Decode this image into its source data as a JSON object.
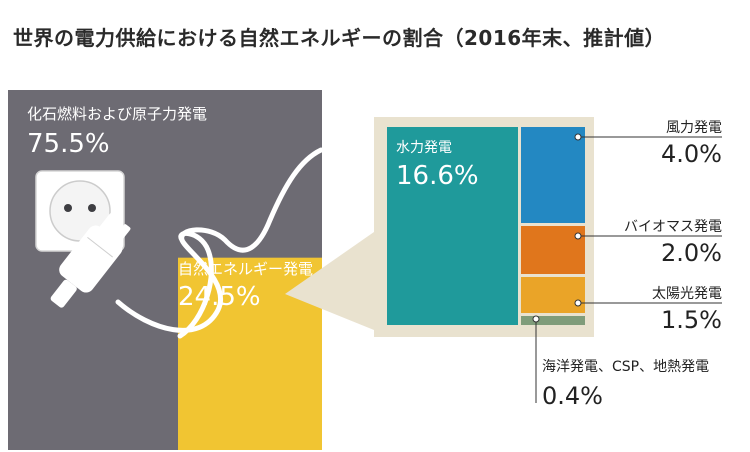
{
  "title": "世界の電力供給における自然エネルギーの割合（2016年末、推計値）",
  "colors": {
    "fossil": "#6d6b73",
    "renewable": "#f1c532",
    "panel_bg": "#e9e2cf",
    "hydro": "#1f9a9b",
    "wind": "#2388c2",
    "bio": "#e0761c",
    "solar": "#eaa428",
    "other": "#7f9c7a"
  },
  "icons": {
    "plug": "power-plug-icon",
    "outlet": "wall-outlet-icon"
  },
  "chart_data": {
    "type": "treemap",
    "total": {
      "categories": [
        "化石燃料および原子力発電",
        "自然エネルギー発電"
      ],
      "values": [
        75.5,
        24.5
      ],
      "labels": [
        "75.5%",
        "24.5%"
      ]
    },
    "renewable_breakdown": {
      "categories": [
        "水力発電",
        "風力発電",
        "バイオマス発電",
        "太陽光発電",
        "海洋発電、CSP、地熱発電"
      ],
      "values": [
        16.6,
        4.0,
        2.0,
        1.5,
        0.4
      ],
      "labels": [
        "16.6%",
        "4.0%",
        "2.0%",
        "1.5%",
        "0.4%"
      ]
    }
  }
}
